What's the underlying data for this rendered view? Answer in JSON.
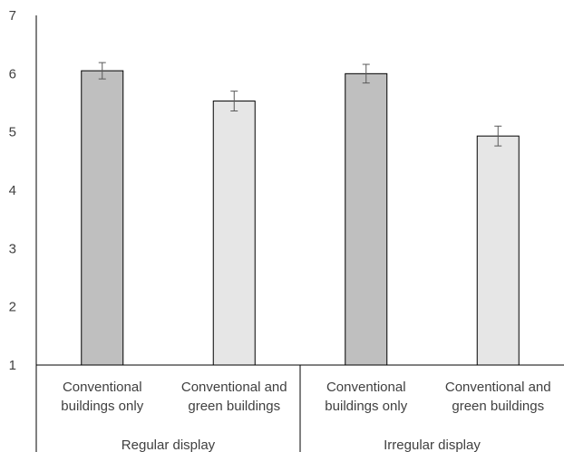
{
  "chart_data": {
    "type": "bar",
    "title": "",
    "xlabel": "",
    "ylabel": "",
    "ylim": [
      1,
      7
    ],
    "yticks": [
      "1",
      "2",
      "3",
      "4",
      "5",
      "6",
      "7"
    ],
    "grid": false,
    "legend": "none",
    "groups": [
      {
        "label": "Regular display",
        "bars": [
          {
            "label_lines": [
              "Conventional",
              "buildings only"
            ],
            "value": 6.05,
            "error": 0.14,
            "color": "#bfbfbf"
          },
          {
            "label_lines": [
              "Conventional and",
              "green buildings"
            ],
            "value": 5.53,
            "error": 0.17,
            "color": "#e6e6e6"
          }
        ]
      },
      {
        "label": "Irregular display",
        "bars": [
          {
            "label_lines": [
              "Conventional",
              "buildings only"
            ],
            "value": 6.0,
            "error": 0.16,
            "color": "#bfbfbf"
          },
          {
            "label_lines": [
              "Conventional and",
              "green buildings"
            ],
            "value": 4.93,
            "error": 0.17,
            "color": "#e6e6e6"
          }
        ]
      }
    ]
  }
}
